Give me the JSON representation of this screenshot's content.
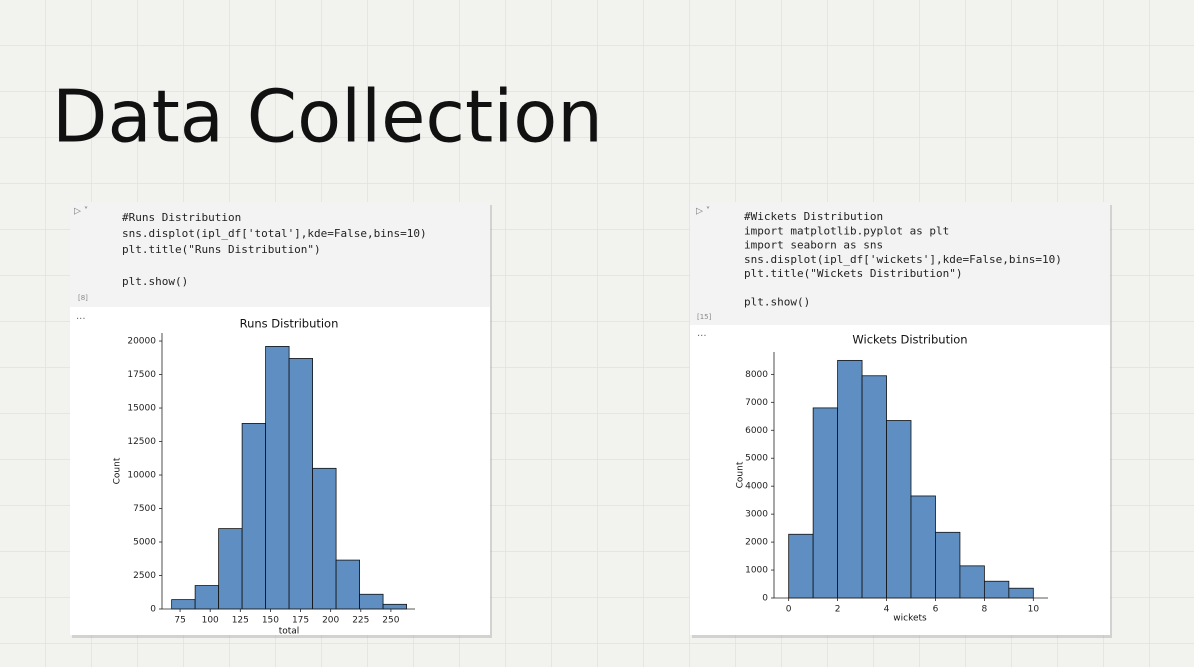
{
  "slide_title": "Data Collection",
  "cells": [
    {
      "code": [
        [
          "#Runs Distribution",
          "sns.displot(ipl_df['total'],kde=False,bins=10)",
          "plt.title(\"Runs Distribution\")"
        ],
        [
          "plt.show()"
        ]
      ],
      "count": "[8]",
      "output_marker": "..."
    },
    {
      "code": [
        [
          "#Wickets Distribution",
          "import matplotlib.pyplot as plt",
          "import seaborn as sns",
          "sns.displot(ipl_df['wickets'],kde=False,bins=10)",
          "plt.title(\"Wickets Distribution\")"
        ],
        [
          "plt.show()"
        ]
      ],
      "count": "[15]",
      "output_marker": "..."
    }
  ],
  "chart_data": [
    {
      "type": "histogram",
      "title": "Runs Distribution",
      "xlabel": "total",
      "ylabel": "Count",
      "color": "#5f8fc2",
      "bins": [
        68,
        87.5,
        107,
        126.5,
        146,
        165.5,
        185,
        204.5,
        224,
        243.5,
        263
      ],
      "values": [
        700,
        1750,
        6000,
        13850,
        19600,
        18700,
        10500,
        3650,
        1100,
        350
      ],
      "xlim": [
        60,
        270
      ],
      "ylim": [
        0,
        20600
      ],
      "xticks": [
        75,
        100,
        125,
        150,
        175,
        200,
        225,
        250
      ],
      "yticks": [
        0,
        2500,
        5000,
        7500,
        10000,
        12500,
        15000,
        17500,
        20000
      ]
    },
    {
      "type": "histogram",
      "title": "Wickets Distribution",
      "xlabel": "wickets",
      "ylabel": "Count",
      "color": "#5f8fc2",
      "bins": [
        0,
        1,
        2,
        3,
        4,
        5,
        6,
        7,
        8,
        9,
        10
      ],
      "values": [
        2280,
        6800,
        8500,
        7950,
        6350,
        3650,
        2350,
        1150,
        600,
        350
      ],
      "xlim": [
        -0.6,
        10.6
      ],
      "ylim": [
        0,
        8800
      ],
      "xticks": [
        0,
        2,
        4,
        6,
        8,
        10
      ],
      "yticks": [
        0,
        1000,
        2000,
        3000,
        4000,
        5000,
        6000,
        7000,
        8000
      ]
    }
  ]
}
